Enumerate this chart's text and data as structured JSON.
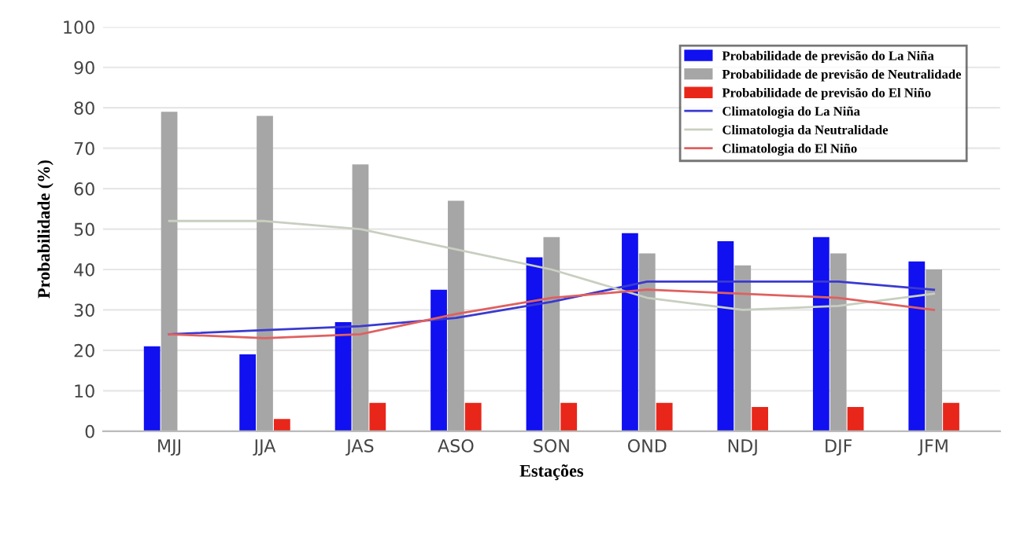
{
  "chart_data": {
    "type": "bar",
    "xlabel": "Estações",
    "ylabel": "Probabilidade (%)",
    "categories": [
      "MJJ",
      "JJA",
      "JAS",
      "ASO",
      "SON",
      "OND",
      "NDJ",
      "DJF",
      "JFM"
    ],
    "series": [
      {
        "name": "Probabilidade de previsão do La Niña",
        "color": "#1010f0",
        "values": [
          21,
          19,
          27,
          35,
          43,
          49,
          47,
          48,
          42
        ]
      },
      {
        "name": "Probabilidade de previsão de Neutralidade",
        "color": "#a6a6a6",
        "values": [
          79,
          78,
          66,
          57,
          48,
          44,
          41,
          44,
          40
        ]
      },
      {
        "name": "Probabilidade de previsão do El Niño",
        "color": "#e8261a",
        "values": [
          0,
          3,
          7,
          7,
          7,
          7,
          6,
          6,
          7
        ]
      },
      {
        "name": "Climatologia do La Niña",
        "type": "line",
        "color": "#3a3ad0",
        "values": [
          24,
          25,
          26,
          28,
          32,
          37,
          37,
          37,
          35
        ]
      },
      {
        "name": "Climatologia da Neutralidade",
        "type": "line",
        "color": "#c8cfc0",
        "values": [
          52,
          52,
          50,
          45,
          40,
          33,
          30,
          31,
          34
        ]
      },
      {
        "name": "Climatologia do El Niño",
        "type": "line",
        "color": "#e06060",
        "values": [
          24,
          23,
          24,
          29,
          33,
          35,
          34,
          33,
          30
        ]
      }
    ],
    "ylim": [
      0,
      100
    ],
    "yticks": [
      0,
      10,
      20,
      30,
      40,
      50,
      60,
      70,
      80,
      90,
      100
    ],
    "grid": "y",
    "legend": "top right"
  }
}
